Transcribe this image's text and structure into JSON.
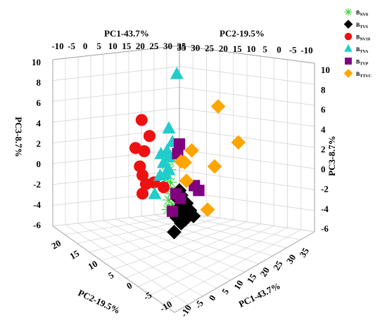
{
  "chart_data": {
    "type": "scatter",
    "projection": "3d",
    "axis_titles": {
      "pc1_top": "PC1-43.7%",
      "pc2_top": "PC2-19.5%",
      "pc3_left": "PC3-8.7%",
      "pc3_right": "PC3-8.7%",
      "pc2_bottom": "PC2-19.5%",
      "pc1_bottom": "PC1-43.7%"
    },
    "axes": {
      "pc1": {
        "title": "PC1-43.7%",
        "range": [
          -10,
          35
        ],
        "ticks": [
          "-10",
          "-5",
          "0",
          "5",
          "10",
          "15",
          "20",
          "25",
          "30",
          "35"
        ]
      },
      "pc2": {
        "title": "PC2-19.5%",
        "range": [
          -10,
          20
        ],
        "ticks_top": [
          "35",
          "30",
          "25",
          "20",
          "15",
          "10",
          "5",
          "0",
          "-5",
          "-10"
        ],
        "ticks_bottom": [
          "20",
          "15",
          "10",
          "5",
          "0",
          "-5",
          "-10"
        ]
      },
      "pc3": {
        "title": "PC3-8.7%",
        "range": [
          -6,
          10
        ],
        "ticks": [
          "10",
          "8",
          "6",
          "4",
          "2",
          "0",
          "-2",
          "-4",
          "-6"
        ]
      }
    },
    "pc1_bottom_ticks": [
      "-10",
      "-5",
      "0",
      "5",
      "10",
      "15",
      "20",
      "25",
      "30",
      "35"
    ],
    "legend_position": "top-right",
    "grid": true,
    "series": [
      {
        "name": "B",
        "sub": "NV0",
        "marker": "star",
        "color": "#33cc33",
        "points": [
          [
            -0.6,
            1.2
          ],
          [
            -0.4,
            0.8
          ],
          [
            -0.7,
            0.2
          ],
          [
            -0.3,
            -0.4
          ],
          [
            -0.6,
            -1.5
          ],
          [
            -0.2,
            -2.0
          ],
          [
            -0.5,
            -2.6
          ],
          [
            -0.1,
            -3.4
          ],
          [
            -0.4,
            -4.2
          ],
          [
            0.0,
            -4.8
          ],
          [
            -0.5,
            -5.4
          ]
        ]
      },
      {
        "name": "B",
        "sub": "TVS",
        "marker": "diamond",
        "color": "#000000",
        "points": [
          [
            0.8,
            -3.0
          ],
          [
            1.0,
            -3.6
          ],
          [
            0.6,
            -4.0
          ],
          [
            1.2,
            -4.3
          ],
          [
            1.6,
            -4.6
          ],
          [
            0.9,
            -5.0
          ],
          [
            1.4,
            -5.4
          ],
          [
            2.0,
            -5.5
          ],
          [
            1.1,
            -6.0
          ],
          [
            0.5,
            -6.4
          ],
          [
            1.5,
            -6.6
          ],
          [
            2.4,
            -6.2
          ],
          [
            1.0,
            -7.1
          ],
          [
            0.2,
            -8.2
          ]
        ]
      },
      {
        "name": "B",
        "sub": "NV10",
        "marker": "circle",
        "color": "#ee1111",
        "points": [
          [
            -3.5,
            5.8
          ],
          [
            -2.6,
            3.8
          ],
          [
            -4.2,
            2.3
          ],
          [
            -3.2,
            1.9
          ],
          [
            -3.7,
            0.0
          ],
          [
            -3.4,
            -1.1
          ],
          [
            -2.1,
            -2.0
          ],
          [
            -3.0,
            -2.2
          ],
          [
            -1.0,
            -2.6
          ],
          [
            -3.4,
            -3.4
          ]
        ]
      },
      {
        "name": "B",
        "sub": "TVA",
        "marker": "triangle",
        "color": "#22cccc",
        "points": [
          [
            0.5,
            11.5
          ],
          [
            -0.4,
            4.7
          ],
          [
            0.0,
            3.0
          ],
          [
            -0.6,
            1.9
          ],
          [
            -0.4,
            1.1
          ],
          [
            -1.3,
            1.5
          ],
          [
            -1.0,
            0.4
          ],
          [
            -0.4,
            -0.5
          ],
          [
            -0.8,
            -1.0
          ],
          [
            -1.4,
            -1.2
          ],
          [
            -2.0,
            -3.5
          ]
        ]
      },
      {
        "name": "B",
        "sub": "TVP",
        "marker": "square",
        "color": "#800080",
        "points": [
          [
            0.8,
            2.8
          ],
          [
            0.6,
            1.6
          ],
          [
            0.4,
            -3.4
          ],
          [
            0.9,
            -4.0
          ],
          [
            2.5,
            -2.4
          ],
          [
            3.0,
            -3.0
          ],
          [
            0.0,
            -5.6
          ]
        ]
      },
      {
        "name": "B",
        "sub": "TTVC",
        "marker": "diamond",
        "color": "#ffa500",
        "points": [
          [
            5.2,
            7.5
          ],
          [
            7.5,
            3.0
          ],
          [
            2.2,
            2.0
          ],
          [
            1.0,
            0.6
          ],
          [
            1.4,
            0.5
          ],
          [
            4.8,
            0.0
          ],
          [
            1.6,
            -1.8
          ],
          [
            4.0,
            -5.4
          ]
        ]
      }
    ]
  }
}
